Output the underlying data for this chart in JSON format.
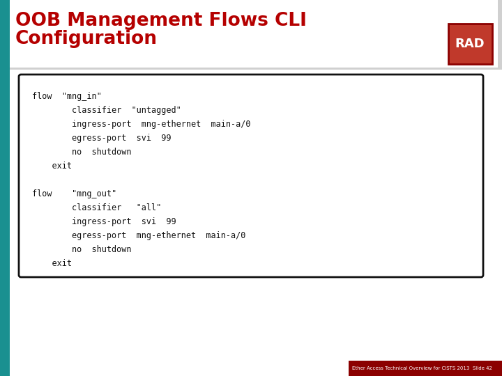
{
  "title_line1": "OOB Management Flows CLI",
  "title_line2": "Configuration",
  "title_color": "#b50000",
  "slide_bg_color": "#ffffff",
  "header_bg_color": "#f5f5f5",
  "left_bar_color": "#1a9090",
  "code_lines": [
    "flow  \"mng_in\"",
    "        classifier  \"untagged\"",
    "        ingress-port  mng-ethernet  main-a/0",
    "        egress-port  svi  99",
    "        no  shutdown",
    "    exit",
    "",
    "flow    \"mng_out\"",
    "        classifier   \"all\"",
    "        ingress-port  svi  99",
    "        egress-port  mng-ethernet  main-a/0",
    "        no  shutdown",
    "    exit"
  ],
  "code_bg": "#ffffff",
  "code_border": "#111111",
  "footer_text": "Ether Access Technical Overview for CISTS 2013  Slide 42",
  "footer_bg": "#8b0000",
  "rad_bg": "#c0392b",
  "rad_border": "#8b0000",
  "rad_text": "RAD",
  "header_shadow": "#d0d0d0",
  "header_white": "#ffffff"
}
